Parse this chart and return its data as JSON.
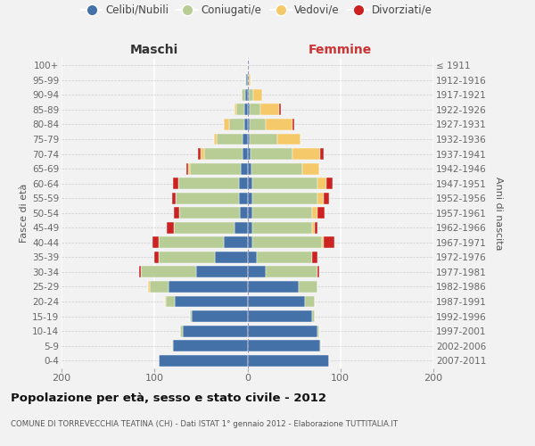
{
  "age_groups": [
    "0-4",
    "5-9",
    "10-14",
    "15-19",
    "20-24",
    "25-29",
    "30-34",
    "35-39",
    "40-44",
    "45-49",
    "50-54",
    "55-59",
    "60-64",
    "65-69",
    "70-74",
    "75-79",
    "80-84",
    "85-89",
    "90-94",
    "95-99",
    "100+"
  ],
  "birth_years": [
    "2007-2011",
    "2002-2006",
    "1997-2001",
    "1992-1996",
    "1987-1991",
    "1982-1986",
    "1977-1981",
    "1972-1976",
    "1967-1971",
    "1962-1966",
    "1957-1961",
    "1952-1956",
    "1947-1951",
    "1942-1946",
    "1937-1941",
    "1932-1936",
    "1927-1931",
    "1922-1926",
    "1917-1921",
    "1912-1916",
    "≤ 1911"
  ],
  "maschi": {
    "celibi": [
      95,
      80,
      70,
      60,
      78,
      85,
      55,
      35,
      25,
      14,
      8,
      9,
      9,
      7,
      5,
      5,
      3,
      3,
      2,
      1,
      0
    ],
    "coniugati": [
      0,
      1,
      2,
      2,
      10,
      20,
      60,
      60,
      70,
      65,
      65,
      68,
      65,
      55,
      42,
      28,
      17,
      9,
      4,
      1,
      0
    ],
    "vedovi": [
      0,
      0,
      0,
      0,
      1,
      2,
      0,
      0,
      0,
      0,
      0,
      0,
      0,
      2,
      3,
      3,
      5,
      2,
      0,
      0,
      0
    ],
    "divorziati": [
      0,
      0,
      0,
      0,
      0,
      0,
      2,
      5,
      7,
      8,
      6,
      4,
      6,
      2,
      3,
      0,
      0,
      0,
      0,
      0,
      0
    ]
  },
  "femmine": {
    "nubili": [
      88,
      78,
      75,
      70,
      62,
      55,
      20,
      10,
      5,
      5,
      5,
      5,
      5,
      4,
      3,
      2,
      2,
      2,
      1,
      0,
      0
    ],
    "coniugate": [
      0,
      1,
      2,
      2,
      10,
      20,
      55,
      60,
      75,
      65,
      65,
      70,
      70,
      55,
      45,
      30,
      18,
      12,
      5,
      1,
      0
    ],
    "vedove": [
      0,
      0,
      0,
      0,
      0,
      0,
      0,
      0,
      2,
      2,
      5,
      7,
      10,
      18,
      30,
      25,
      28,
      20,
      10,
      2,
      0
    ],
    "divorziate": [
      0,
      0,
      0,
      0,
      0,
      0,
      2,
      5,
      12,
      3,
      8,
      6,
      7,
      0,
      4,
      0,
      2,
      2,
      0,
      0,
      0
    ]
  },
  "colors": {
    "celibi_nubili": "#4472a8",
    "coniugati_e": "#b8cc96",
    "vedovi_e": "#f5c96a",
    "divorziati_e": "#cc2222"
  },
  "xlim": 200,
  "title": "Popolazione per età, sesso e stato civile - 2012",
  "subtitle": "COMUNE DI TORREVECCHIA TEATINA (CH) - Dati ISTAT 1° gennaio 2012 - Elaborazione TUTTITALIA.IT",
  "ylabel_left": "Fasce di età",
  "ylabel_right": "Anni di nascita",
  "xlabel_left": "Maschi",
  "xlabel_right": "Femmine",
  "bg_color": "#f2f2f2",
  "bar_height": 0.78,
  "legend_labels": [
    "Celibi/Nubili",
    "Coniugati/e",
    "Vedovi/e",
    "Divorziati/e"
  ]
}
